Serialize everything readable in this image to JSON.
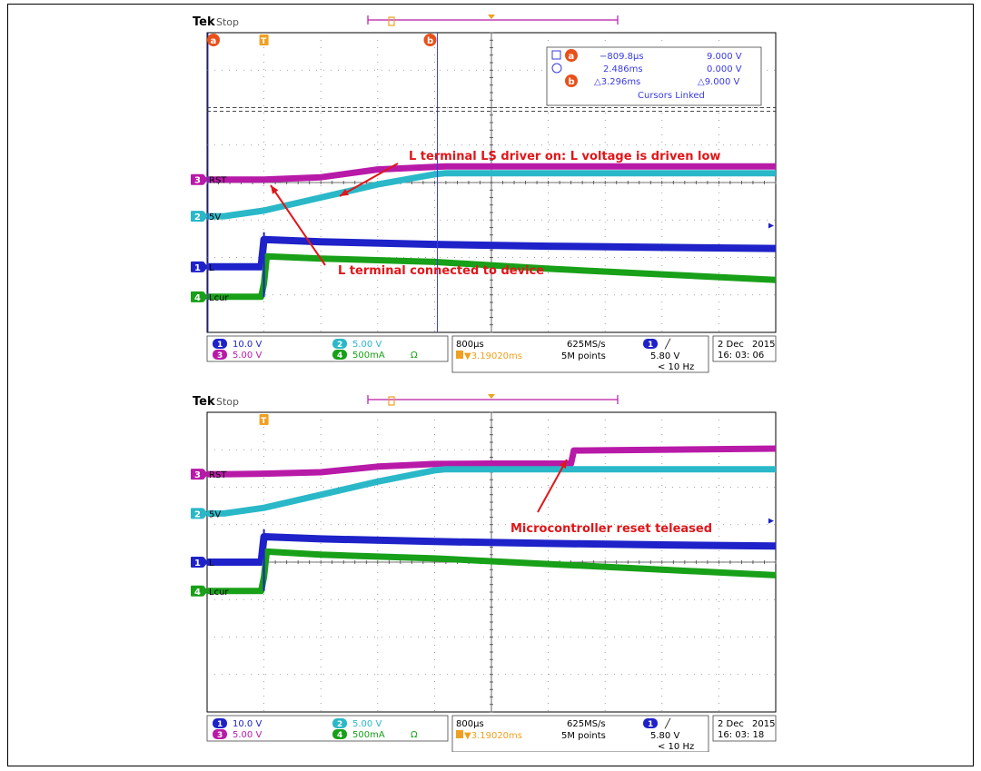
{
  "page_title": "",
  "chart_data": [
    {
      "type": "line",
      "title": "",
      "brand": "Tek",
      "state": "Stop",
      "cursor_a_label": "a",
      "cursor_b_label": "b",
      "trigger_label": "T",
      "cursor_readout": {
        "row_a": {
          "time": "−809.8µs",
          "volts": "9.000 V"
        },
        "row_b": {
          "time": "2.486ms",
          "volts": "0.000 V"
        },
        "delta": {
          "time": "△3.296ms",
          "volts": "△9.000 V"
        },
        "linked": "Cursors Linked"
      },
      "channel_labels": {
        "rst": "RST",
        "five_v": "5V",
        "l": "L",
        "lcur": "Lcur"
      },
      "channel_numbers": {
        "ch1": "1",
        "ch2": "2",
        "ch3": "3",
        "ch4": "4"
      },
      "annotations": [
        "L terminal LS driver on: L voltage is driven low",
        "L terminal connected to device"
      ],
      "settings": {
        "ch1_scale": "10.0 V",
        "ch2_scale": "5.00 V",
        "ch3_scale": "5.00 V",
        "ch4_scale": "500mA",
        "ch4_unit": "Ω",
        "timebase": "800µs",
        "sample_rate": "625MS/s",
        "trigger_delay": "▼3.19020ms",
        "record_length": "5M points",
        "trigger_level": "5.80 V",
        "trigger_freq": "< 10 Hz",
        "trigger_slope": "╱",
        "date": "2 Dec",
        "year": "2015",
        "time": "16: 03: 06"
      },
      "x_divisions": 10,
      "y_divisions": 8,
      "colors": {
        "ch1": "#1e22c8",
        "ch2": "#2ab8c8",
        "ch3": "#b81aa8",
        "ch4": "#18a018",
        "annotation": "#e0161a",
        "cursor": "#3a3ae0",
        "trigger": "#f0a020"
      },
      "series": [
        {
          "name": "RST",
          "x": [
            0,
            0.4,
            1.0,
            2.0,
            3.0,
            4.0,
            4.2,
            5.0,
            6.0,
            10.0
          ],
          "y": [
            4.08,
            4.08,
            4.08,
            4.14,
            4.35,
            4.42,
            4.43,
            4.43,
            4.43,
            4.43
          ]
        },
        {
          "name": "5V",
          "x": [
            0,
            0.3,
            1.0,
            2.0,
            3.0,
            4.0,
            4.2,
            5.0,
            10.0
          ],
          "y": [
            3.1,
            3.1,
            3.25,
            3.6,
            3.95,
            4.22,
            4.25,
            4.25,
            4.25
          ]
        },
        {
          "name": "L",
          "x": [
            0,
            0.95,
            1.0,
            2.0,
            4.0,
            6.0,
            8.0,
            10.0
          ],
          "y": [
            1.75,
            1.75,
            2.48,
            2.42,
            2.35,
            2.3,
            2.27,
            2.24
          ]
        },
        {
          "name": "Lcur",
          "x": [
            0,
            0.95,
            1.0,
            1.05,
            2.0,
            4.0,
            6.0,
            8.0,
            10.0
          ],
          "y": [
            0.95,
            0.95,
            1.3,
            2.03,
            1.97,
            1.88,
            1.7,
            1.55,
            1.4
          ]
        }
      ],
      "cursor_a_div": 0,
      "cursor_b_div": 4.05,
      "trigger_div": 1.0
    },
    {
      "type": "line",
      "title": "",
      "brand": "Tek",
      "state": "Stop",
      "trigger_label": "T",
      "channel_labels": {
        "rst": "RST",
        "five_v": "5V",
        "l": "L",
        "lcur": "Lcur"
      },
      "channel_numbers": {
        "ch1": "1",
        "ch2": "2",
        "ch3": "3",
        "ch4": "4"
      },
      "annotations": [
        "Microcontroller reset teleased"
      ],
      "settings": {
        "ch1_scale": "10.0 V",
        "ch2_scale": "5.00 V",
        "ch3_scale": "5.00 V",
        "ch4_scale": "500mA",
        "ch4_unit": "Ω",
        "timebase": "800µs",
        "sample_rate": "625MS/s",
        "trigger_delay": "▼3.19020ms",
        "record_length": "5M points",
        "trigger_level": "5.80 V",
        "trigger_freq": "< 10 Hz",
        "trigger_slope": "╱",
        "date": "2 Dec",
        "year": "2015",
        "time": "16: 03: 18"
      },
      "x_divisions": 10,
      "y_divisions": 8,
      "colors": {
        "ch1": "#1e22c8",
        "ch2": "#2ab8c8",
        "ch3": "#b81aa8",
        "ch4": "#18a018",
        "annotation": "#e0161a",
        "cursor": "#3a3ae0",
        "trigger": "#f0a020"
      },
      "series": [
        {
          "name": "RST",
          "x": [
            0,
            0.4,
            1.0,
            2.0,
            3.0,
            4.0,
            5.0,
            6.4,
            6.45,
            10.0
          ],
          "y": [
            6.35,
            6.35,
            6.36,
            6.4,
            6.55,
            6.62,
            6.63,
            6.63,
            6.98,
            7.03
          ]
        },
        {
          "name": "5V",
          "x": [
            0,
            0.3,
            1.0,
            2.0,
            3.0,
            4.0,
            4.2,
            5.0,
            10.0
          ],
          "y": [
            5.3,
            5.3,
            5.45,
            5.8,
            6.15,
            6.45,
            6.48,
            6.48,
            6.48
          ]
        },
        {
          "name": "L",
          "x": [
            0,
            0.95,
            1.0,
            2.0,
            4.0,
            6.0,
            8.0,
            10.0
          ],
          "y": [
            4.0,
            4.0,
            4.68,
            4.62,
            4.55,
            4.5,
            4.46,
            4.43
          ]
        },
        {
          "name": "Lcur",
          "x": [
            0,
            0.95,
            1.0,
            1.05,
            2.0,
            4.0,
            6.0,
            8.0,
            10.0
          ],
          "y": [
            3.23,
            3.23,
            3.6,
            4.28,
            4.2,
            4.1,
            3.95,
            3.8,
            3.65
          ]
        }
      ],
      "trigger_div": 1.0
    }
  ]
}
